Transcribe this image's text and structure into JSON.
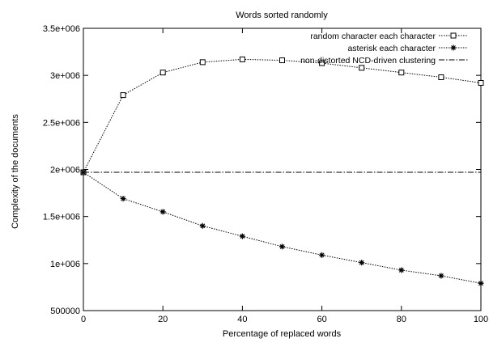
{
  "chart_data": {
    "type": "line",
    "title": "Words sorted randomly",
    "xlabel": "Percentage of replaced words",
    "ylabel": "Complexity of the documents",
    "xlim": [
      0,
      100
    ],
    "ylim": [
      500000,
      3500000
    ],
    "x_ticks": [
      0,
      20,
      40,
      60,
      80,
      100
    ],
    "x_tick_labels": [
      "0",
      "20",
      "40",
      "60",
      "80",
      "100"
    ],
    "y_ticks": [
      500000,
      1000000,
      1500000,
      2000000,
      2500000,
      3000000,
      3500000
    ],
    "y_tick_labels": [
      "500000",
      "1e+006",
      "1.5e+006",
      "2e+006",
      "2.5e+006",
      "3e+006",
      "3.5e+006"
    ],
    "grid": false,
    "legend_position": "top-right",
    "x": [
      0,
      10,
      20,
      30,
      40,
      50,
      60,
      70,
      80,
      90,
      100
    ],
    "series": [
      {
        "name": "random character each character",
        "marker": "square",
        "line_style": "dotted",
        "values": [
          1970000,
          2790000,
          3030000,
          3140000,
          3170000,
          3160000,
          3130000,
          3080000,
          3030000,
          2980000,
          2920000
        ]
      },
      {
        "name": "asterisk each character",
        "marker": "star",
        "line_style": "dotted",
        "values": [
          1970000,
          1690000,
          1550000,
          1400000,
          1290000,
          1180000,
          1090000,
          1010000,
          930000,
          870000,
          790000
        ]
      },
      {
        "name": "non-distorted NCD-driven clustering",
        "marker": "none",
        "line_style": "dash-dot",
        "constant": 1970000
      }
    ],
    "colors": {
      "line": "#000000",
      "background": "#ffffff"
    }
  }
}
